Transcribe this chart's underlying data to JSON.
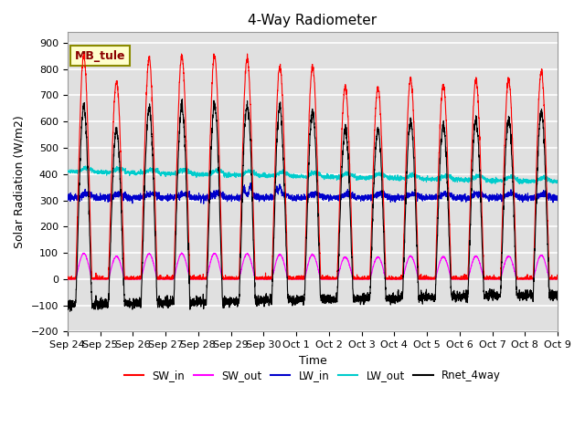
{
  "title": "4-Way Radiometer",
  "xlabel": "Time",
  "ylabel": "Solar Radiation (W/m2)",
  "ylim": [
    -200,
    940
  ],
  "yticks": [
    -200,
    -100,
    0,
    100,
    200,
    300,
    400,
    500,
    600,
    700,
    800,
    900
  ],
  "annotation": "MB_tule",
  "annotation_color": "#8B0000",
  "annotation_bg": "#FFFFCC",
  "annotation_border": "#8B8B00",
  "background_color": "#E0E0E0",
  "grid_color": "#FFFFFF",
  "colors": {
    "SW_in": "#FF0000",
    "SW_out": "#FF00FF",
    "LW_in": "#0000CC",
    "LW_out": "#00CCCC",
    "Rnet_4way": "#000000"
  },
  "x_tick_labels": [
    "Sep 24",
    "Sep 25",
    "Sep 26",
    "Sep 27",
    "Sep 28",
    "Sep 29",
    "Sep 30",
    "Oct 1",
    "Oct 2",
    "Oct 3",
    "Oct 4",
    "Oct 5",
    "Oct 6",
    "Oct 7",
    "Oct 8",
    "Oct 9"
  ],
  "n_days": 15,
  "seed": 42
}
